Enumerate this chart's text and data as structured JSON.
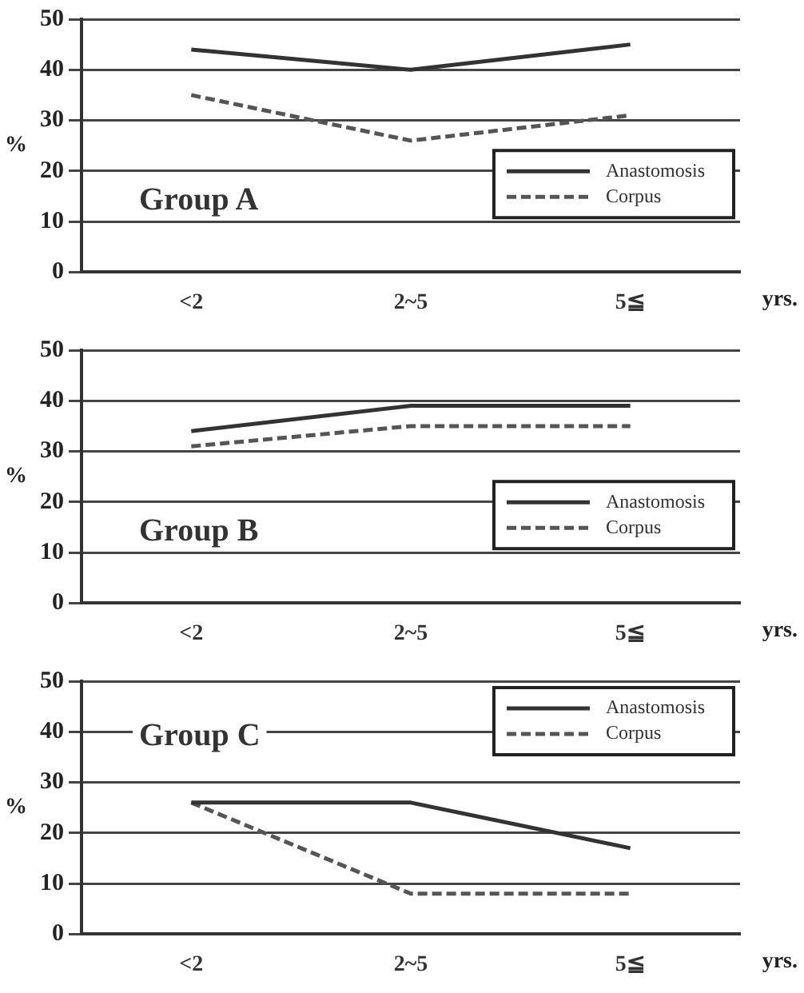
{
  "chart_data": [
    {
      "type": "line",
      "categories": [
        "<2",
        "2~5",
        "5≦"
      ],
      "xlabel": "yrs.",
      "ylabel": "%",
      "ylim": [
        0,
        50
      ],
      "yticks": [
        0,
        10,
        20,
        30,
        40,
        50
      ],
      "grid": "y",
      "legend": "right",
      "annotations": [
        "Group A"
      ],
      "series": [
        {
          "name": "Anastomosis",
          "color": "#333333",
          "values": [
            44,
            40,
            45
          ]
        },
        {
          "name": "Corpus",
          "color": "#555555",
          "line_style": "dashed",
          "values": [
            35,
            26,
            31
          ]
        }
      ]
    },
    {
      "type": "line",
      "categories": [
        "<2",
        "2~5",
        "5≦"
      ],
      "xlabel": "yrs.",
      "ylabel": "%",
      "ylim": [
        0,
        50
      ],
      "yticks": [
        0,
        10,
        20,
        30,
        40,
        50
      ],
      "grid": "y",
      "legend": "right",
      "annotations": [
        "Group B"
      ],
      "series": [
        {
          "name": "Anastomosis",
          "color": "#333333",
          "values": [
            34,
            39,
            39
          ]
        },
        {
          "name": "Corpus",
          "color": "#555555",
          "line_style": "dashed",
          "values": [
            31,
            35,
            35
          ]
        }
      ]
    },
    {
      "type": "line",
      "categories": [
        "<2",
        "2~5",
        "5≦"
      ],
      "xlabel": "yrs.",
      "ylabel": "%",
      "ylim": [
        0,
        50
      ],
      "yticks": [
        0,
        10,
        20,
        30,
        40,
        50
      ],
      "grid": "y",
      "legend": "top right",
      "annotations": [
        "Group C"
      ],
      "series": [
        {
          "name": "Anastomosis",
          "color": "#333333",
          "values": [
            26,
            26,
            17
          ]
        },
        {
          "name": "Corpus",
          "color": "#555555",
          "line_style": "dashed",
          "values": [
            26,
            8,
            8
          ]
        }
      ]
    }
  ]
}
